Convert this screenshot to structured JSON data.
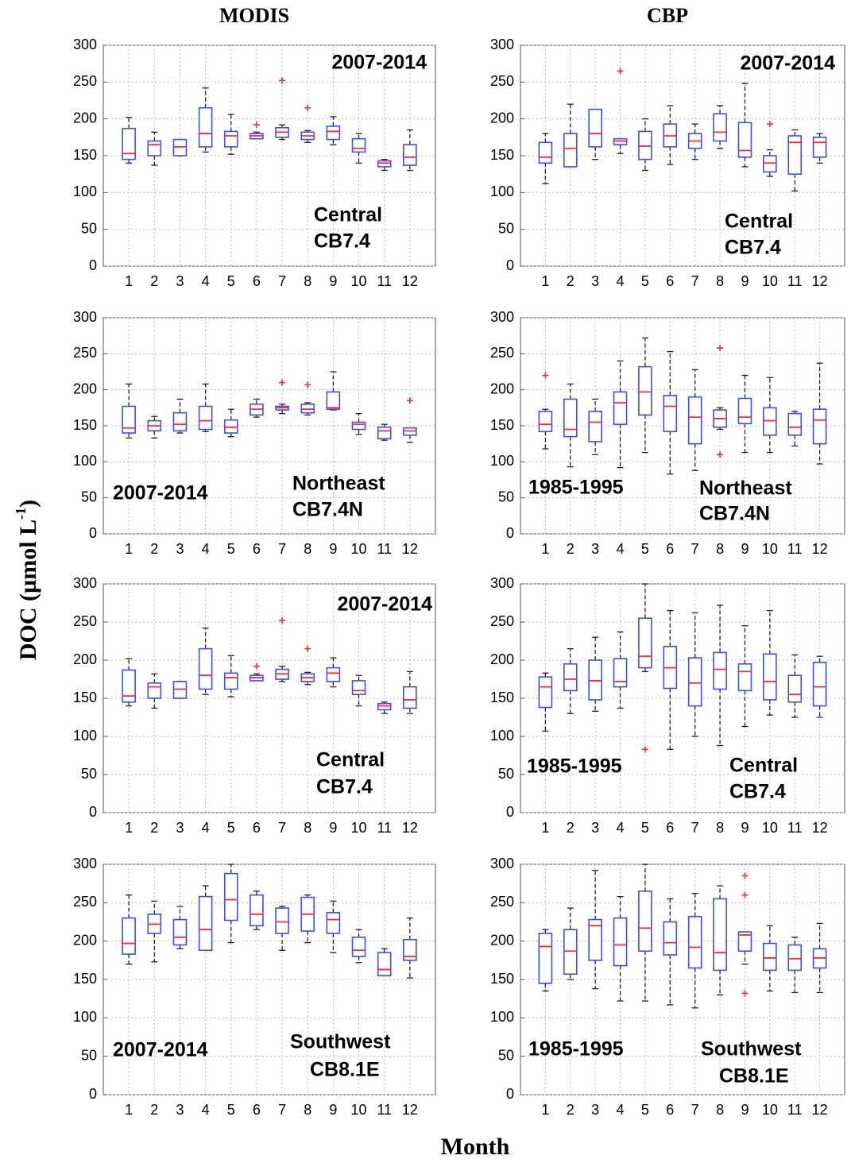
{
  "figure": {
    "columns": [
      "MODIS",
      "CBP"
    ],
    "ylabel": "DOC (µmol L",
    "ylabel_sup": "-1",
    "ylabel_end": ")",
    "xlabel": "Month"
  },
  "chart_data": [
    {
      "type": "box",
      "period": "2007-2014",
      "region": "Central",
      "station": "CB7.4",
      "categories": [
        "1",
        "2",
        "3",
        "4",
        "5",
        "6",
        "7",
        "8",
        "9",
        "10",
        "11",
        "12"
      ],
      "whislo": [
        140,
        137,
        150,
        155,
        152,
        173,
        172,
        168,
        165,
        140,
        130,
        130
      ],
      "q1": [
        145,
        150,
        150,
        162,
        162,
        173,
        175,
        172,
        172,
        155,
        135,
        137
      ],
      "median": [
        153,
        165,
        162,
        180,
        177,
        177,
        182,
        177,
        183,
        160,
        140,
        148
      ],
      "q3": [
        187,
        170,
        172,
        215,
        183,
        180,
        188,
        182,
        190,
        173,
        143,
        165
      ],
      "whishi": [
        202,
        182,
        172,
        242,
        206,
        182,
        192,
        184,
        203,
        180,
        145,
        185
      ],
      "fliers": [
        [],
        [],
        [],
        [],
        [],
        [
          192
        ],
        [
          252
        ],
        [
          215
        ],
        [],
        [],
        [],
        []
      ],
      "ylim": [
        0,
        300
      ],
      "yticks": [
        0,
        50,
        100,
        150,
        200,
        250,
        300
      ],
      "grid": true,
      "box_color": "#3a4dff",
      "median_color": "#ff2a2a",
      "whisker_color": "#222222",
      "flier_color": "#ff2a2a"
    },
    {
      "type": "box",
      "period": "2007-2014",
      "region": "Central",
      "station": "CB7.4",
      "categories": [
        "1",
        "2",
        "3",
        "4",
        "5",
        "6",
        "7",
        "8",
        "9",
        "10",
        "11",
        "12"
      ],
      "whislo": [
        112,
        135,
        145,
        153,
        130,
        138,
        145,
        160,
        135,
        122,
        102,
        140
      ],
      "q1": [
        140,
        135,
        162,
        165,
        145,
        162,
        160,
        170,
        148,
        128,
        125,
        148
      ],
      "median": [
        148,
        160,
        180,
        170,
        163,
        177,
        170,
        182,
        157,
        140,
        168,
        168
      ],
      "q3": [
        168,
        180,
        213,
        173,
        183,
        193,
        180,
        207,
        195,
        150,
        177,
        175
      ],
      "whishi": [
        180,
        220,
        213,
        173,
        200,
        218,
        193,
        218,
        248,
        158,
        185,
        180
      ],
      "fliers": [
        [],
        [],
        [],
        [
          265
        ],
        [],
        [],
        [],
        [],
        [],
        [
          193
        ],
        [],
        []
      ],
      "ylim": [
        0,
        300
      ],
      "yticks": [
        0,
        50,
        100,
        150,
        200,
        250,
        300
      ],
      "grid": true,
      "box_color": "#3a4dff",
      "median_color": "#ff2a2a",
      "whisker_color": "#222222",
      "flier_color": "#ff2a2a"
    },
    {
      "type": "box",
      "period": "2007-2014",
      "region": "Northeast",
      "station": "CB7.4N",
      "categories": [
        "1",
        "2",
        "3",
        "4",
        "5",
        "6",
        "7",
        "8",
        "9",
        "10",
        "11",
        "12"
      ],
      "whislo": [
        133,
        133,
        140,
        142,
        135,
        162,
        167,
        165,
        172,
        138,
        130,
        127
      ],
      "q1": [
        140,
        143,
        143,
        145,
        140,
        165,
        172,
        168,
        173,
        145,
        132,
        137
      ],
      "median": [
        147,
        150,
        152,
        157,
        148,
        173,
        175,
        173,
        175,
        152,
        143,
        143
      ],
      "q3": [
        177,
        157,
        168,
        177,
        158,
        180,
        177,
        180,
        197,
        155,
        148,
        147
      ],
      "whishi": [
        208,
        163,
        187,
        208,
        173,
        187,
        180,
        182,
        225,
        167,
        152,
        147
      ],
      "fliers": [
        [],
        [],
        [],
        [],
        [],
        [],
        [
          210
        ],
        [
          207
        ],
        [],
        [],
        [],
        [
          185
        ]
      ],
      "ylim": [
        0,
        300
      ],
      "yticks": [
        0,
        50,
        100,
        150,
        200,
        250,
        300
      ],
      "grid": true,
      "box_color": "#3a4dff",
      "median_color": "#ff2a2a",
      "whisker_color": "#222222",
      "flier_color": "#ff2a2a"
    },
    {
      "type": "box",
      "period": "1985-1995",
      "region": "Northeast",
      "station": "CB7.4N",
      "categories": [
        "1",
        "2",
        "3",
        "4",
        "5",
        "6",
        "7",
        "8",
        "9",
        "10",
        "11",
        "12"
      ],
      "whislo": [
        118,
        93,
        110,
        92,
        113,
        83,
        88,
        145,
        113,
        113,
        122,
        97
      ],
      "q1": [
        142,
        135,
        128,
        152,
        165,
        142,
        125,
        148,
        153,
        137,
        137,
        125
      ],
      "median": [
        152,
        145,
        155,
        182,
        197,
        177,
        162,
        160,
        162,
        157,
        148,
        158
      ],
      "q3": [
        170,
        187,
        170,
        197,
        232,
        192,
        190,
        172,
        188,
        175,
        167,
        173
      ],
      "whishi": [
        173,
        208,
        187,
        240,
        272,
        253,
        228,
        175,
        220,
        217,
        170,
        237
      ],
      "fliers": [
        [
          220
        ],
        [],
        [],
        [],
        [],
        [],
        [],
        [
          258,
          110
        ],
        [],
        [],
        [],
        []
      ],
      "ylim": [
        0,
        300
      ],
      "yticks": [
        0,
        50,
        100,
        150,
        200,
        250,
        300
      ],
      "grid": true,
      "box_color": "#3a4dff",
      "median_color": "#ff2a2a",
      "whisker_color": "#222222",
      "flier_color": "#ff2a2a"
    },
    {
      "type": "box",
      "period": "2007-2014",
      "region": "Central",
      "station": "CB7.4",
      "categories": [
        "1",
        "2",
        "3",
        "4",
        "5",
        "6",
        "7",
        "8",
        "9",
        "10",
        "11",
        "12"
      ],
      "whislo": [
        140,
        137,
        150,
        155,
        152,
        173,
        172,
        168,
        165,
        140,
        130,
        130
      ],
      "q1": [
        145,
        150,
        150,
        162,
        162,
        173,
        175,
        172,
        172,
        155,
        135,
        137
      ],
      "median": [
        153,
        165,
        162,
        180,
        177,
        177,
        182,
        177,
        183,
        160,
        140,
        148
      ],
      "q3": [
        187,
        170,
        172,
        215,
        183,
        180,
        188,
        182,
        190,
        173,
        143,
        165
      ],
      "whishi": [
        202,
        182,
        172,
        242,
        206,
        182,
        192,
        184,
        203,
        180,
        145,
        185
      ],
      "fliers": [
        [],
        [],
        [],
        [],
        [],
        [
          192
        ],
        [
          252
        ],
        [
          215
        ],
        [],
        [],
        [],
        []
      ],
      "ylim": [
        0,
        300
      ],
      "yticks": [
        0,
        50,
        100,
        150,
        200,
        250,
        300
      ],
      "grid": true,
      "box_color": "#3a4dff",
      "median_color": "#ff2a2a",
      "whisker_color": "#222222",
      "flier_color": "#ff2a2a"
    },
    {
      "type": "box",
      "period": "1985-1995",
      "region": "Central",
      "station": "CB7.4",
      "categories": [
        "1",
        "2",
        "3",
        "4",
        "5",
        "6",
        "7",
        "8",
        "9",
        "10",
        "11",
        "12"
      ],
      "whislo": [
        107,
        130,
        133,
        137,
        185,
        83,
        100,
        88,
        113,
        128,
        125,
        125
      ],
      "q1": [
        138,
        160,
        148,
        165,
        190,
        163,
        140,
        162,
        160,
        148,
        145,
        140
      ],
      "median": [
        165,
        175,
        173,
        172,
        205,
        190,
        170,
        188,
        185,
        172,
        155,
        165
      ],
      "q3": [
        178,
        195,
        200,
        202,
        255,
        218,
        203,
        210,
        195,
        208,
        180,
        197
      ],
      "whishi": [
        183,
        215,
        230,
        237,
        300,
        265,
        262,
        272,
        245,
        265,
        207,
        205
      ],
      "fliers": [
        [],
        [],
        [],
        [],
        [
          83
        ],
        [],
        [],
        [],
        [],
        [],
        [],
        []
      ],
      "ylim": [
        0,
        300
      ],
      "yticks": [
        0,
        50,
        100,
        150,
        200,
        250,
        300
      ],
      "grid": true,
      "box_color": "#3a4dff",
      "median_color": "#ff2a2a",
      "whisker_color": "#222222",
      "flier_color": "#ff2a2a"
    },
    {
      "type": "box",
      "period": "2007-2014",
      "region": "Southwest",
      "station": "CB8.1E",
      "categories": [
        "1",
        "2",
        "3",
        "4",
        "5",
        "6",
        "7",
        "8",
        "9",
        "10",
        "11",
        "12"
      ],
      "whislo": [
        170,
        173,
        190,
        188,
        198,
        215,
        188,
        198,
        185,
        172,
        155,
        152
      ],
      "q1": [
        183,
        210,
        195,
        188,
        227,
        220,
        210,
        213,
        210,
        180,
        155,
        175
      ],
      "median": [
        197,
        222,
        205,
        215,
        254,
        235,
        225,
        235,
        228,
        188,
        163,
        180
      ],
      "q3": [
        230,
        235,
        228,
        258,
        288,
        260,
        243,
        257,
        237,
        205,
        185,
        202
      ],
      "whishi": [
        260,
        252,
        245,
        272,
        300,
        265,
        245,
        260,
        252,
        215,
        190,
        230
      ],
      "fliers": [
        [],
        [],
        [],
        [],
        [],
        [],
        [],
        [],
        [],
        [],
        [],
        []
      ],
      "ylim": [
        0,
        300
      ],
      "yticks": [
        0,
        50,
        100,
        150,
        200,
        250,
        300
      ],
      "grid": true,
      "box_color": "#3a4dff",
      "median_color": "#ff2a2a",
      "whisker_color": "#222222",
      "flier_color": "#ff2a2a"
    },
    {
      "type": "box",
      "period": "1985-1995",
      "region": "Southwest",
      "station": "CB8.1E",
      "categories": [
        "1",
        "2",
        "3",
        "4",
        "5",
        "6",
        "7",
        "8",
        "9",
        "10",
        "11",
        "12"
      ],
      "whislo": [
        135,
        150,
        138,
        122,
        122,
        117,
        113,
        130,
        170,
        135,
        133,
        133
      ],
      "q1": [
        145,
        157,
        175,
        168,
        187,
        182,
        165,
        162,
        187,
        162,
        162,
        165
      ],
      "median": [
        193,
        187,
        220,
        195,
        217,
        198,
        192,
        185,
        208,
        178,
        177,
        178
      ],
      "q3": [
        210,
        215,
        228,
        230,
        265,
        225,
        232,
        255,
        212,
        197,
        195,
        190
      ],
      "whishi": [
        215,
        243,
        292,
        258,
        300,
        255,
        262,
        272,
        212,
        220,
        205,
        223
      ],
      "fliers": [
        [],
        [],
        [],
        [],
        [],
        [],
        [],
        [],
        [
          285,
          260,
          132
        ],
        [],
        [],
        []
      ],
      "ylim": [
        0,
        300
      ],
      "yticks": [
        0,
        50,
        100,
        150,
        200,
        250,
        300
      ],
      "grid": true,
      "box_color": "#3a4dff",
      "median_color": "#ff2a2a",
      "whisker_color": "#222222",
      "flier_color": "#ff2a2a"
    }
  ]
}
